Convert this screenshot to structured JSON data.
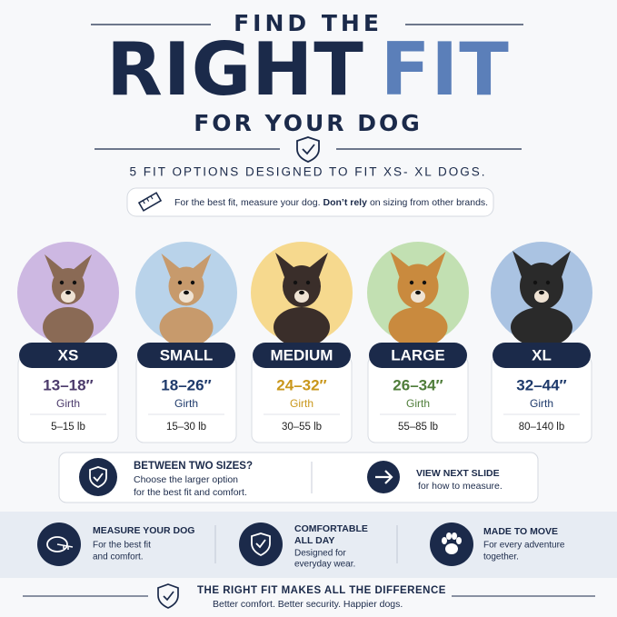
{
  "header": {
    "line1": "FIND THE",
    "word1": "RIGHT",
    "word2": "FIT",
    "line3": "FOR YOUR DOG",
    "subtitle": "5 FIT OPTIONS DESIGNED TO FIT XS- XL DOGS."
  },
  "tip": {
    "text": "For the best fit, measure your dog.",
    "bold": "Don’t rely",
    "rest": "on sizing from other brands."
  },
  "sizes": [
    {
      "label": "XS",
      "girth": "13–18″",
      "girth_label": "Girth",
      "weight": "5–15 lb",
      "color": "#4b3a6b",
      "circle_color": "#cdb8e2",
      "fur": "#8a6a55"
    },
    {
      "label": "SMALL",
      "girth": "18–26″",
      "girth_label": "Girth",
      "weight": "15–30 lb",
      "color": "#1e3a6b",
      "circle_color": "#b9d3ea",
      "fur": "#c79a6c"
    },
    {
      "label": "MEDIUM",
      "girth": "24–32″",
      "girth_label": "Girth",
      "weight": "30–55 lb",
      "color": "#c9971c",
      "circle_color": "#f6d98e",
      "fur": "#3a2e2a"
    },
    {
      "label": "LARGE",
      "girth": "26–34″",
      "girth_label": "Girth",
      "weight": "55–85 lb",
      "color": "#4f7d3a",
      "circle_color": "#c2e0b2",
      "fur": "#c98a3e"
    },
    {
      "label": "XL",
      "girth": "32–44″",
      "girth_label": "Girth",
      "weight": "80–140 lb",
      "color": "#1e3a6b",
      "circle_color": "#aac3e2",
      "fur": "#2a2a2a"
    }
  ],
  "callout": {
    "title": "BETWEEN TWO SIZES?",
    "lines": [
      "Choose the larger option",
      "for the best fit and comfort."
    ],
    "next_title": "VIEW NEXT SLIDE",
    "next_text": "for how to measure."
  },
  "features": [
    {
      "title": [
        "MEASURE YOUR DOG"
      ],
      "lines": [
        "For the best fit",
        "and comfort."
      ]
    },
    {
      "title": [
        "COMFORTABLE",
        "ALL DAY"
      ],
      "lines": [
        "Designed for",
        "everyday wear."
      ]
    },
    {
      "title": [
        "MADE TO MOVE"
      ],
      "lines": [
        "For every adventure",
        "together."
      ]
    }
  ],
  "footer": {
    "title": "THE RIGHT FIT MAKES ALL THE DIFFERENCE",
    "text": "Better comfort. Better security. Happier dogs."
  }
}
